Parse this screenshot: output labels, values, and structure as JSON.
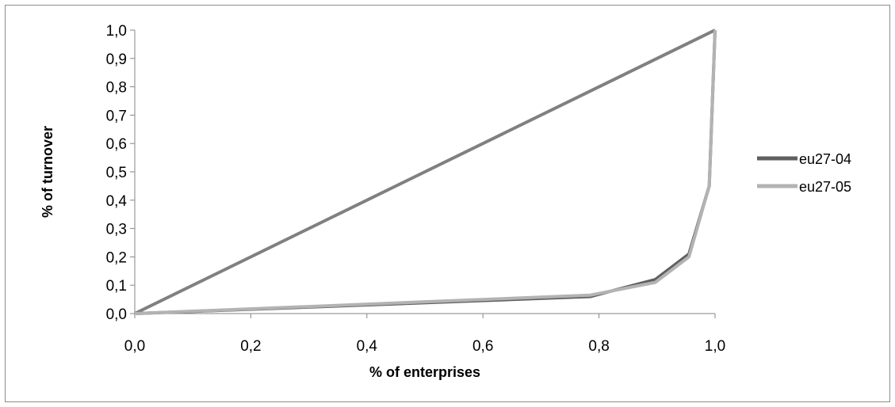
{
  "chart_data": {
    "type": "line",
    "xlabel": "% of enterprises",
    "ylabel": "% of turnover",
    "xlim": [
      0,
      1
    ],
    "ylim": [
      0,
      1
    ],
    "x_ticks": [
      "0,0",
      "0,2",
      "0,4",
      "0,6",
      "0,8",
      "1,0"
    ],
    "y_ticks": [
      "0,0",
      "0,1",
      "0,2",
      "0,3",
      "0,4",
      "0,5",
      "0,6",
      "0,7",
      "0,8",
      "0,9",
      "1,0"
    ],
    "grid": false,
    "legend_position": "right",
    "diagonal": {
      "x": [
        0,
        1
      ],
      "y": [
        0,
        1
      ],
      "color": "#808080"
    },
    "series": [
      {
        "name": "eu27-04",
        "color": "#5f5f5f",
        "x": [
          0,
          0.785,
          0.897,
          0.955,
          0.99,
          1.0
        ],
        "y": [
          0,
          0.06,
          0.12,
          0.21,
          0.45,
          1.0
        ]
      },
      {
        "name": "eu27-05",
        "color": "#b3b3b3",
        "x": [
          0,
          0.785,
          0.897,
          0.955,
          0.99,
          1.0
        ],
        "y": [
          0,
          0.065,
          0.11,
          0.2,
          0.45,
          1.0
        ]
      }
    ]
  }
}
